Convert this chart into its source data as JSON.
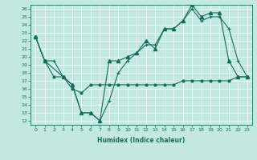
{
  "xlabel": "Humidex (Indice chaleur)",
  "bg_color": "#c3e8e0",
  "line_color": "#1a6b5a",
  "xlim": [
    -0.5,
    23.5
  ],
  "ylim": [
    11.5,
    26.5
  ],
  "yticks": [
    12,
    13,
    14,
    15,
    16,
    17,
    18,
    19,
    20,
    21,
    22,
    23,
    24,
    25,
    26
  ],
  "xticks": [
    0,
    1,
    2,
    3,
    4,
    5,
    6,
    7,
    8,
    9,
    10,
    11,
    12,
    13,
    14,
    15,
    16,
    17,
    18,
    19,
    20,
    21,
    22,
    23
  ],
  "series1_x": [
    0,
    1,
    2,
    3,
    4,
    5,
    6,
    7,
    8,
    9,
    10,
    11,
    12,
    13,
    14,
    15,
    16,
    17,
    18,
    19,
    20,
    21,
    22,
    23
  ],
  "series1_y": [
    22.5,
    19.5,
    19.5,
    17.5,
    16.5,
    13.0,
    13.0,
    12.0,
    14.5,
    18.0,
    19.5,
    20.5,
    21.5,
    21.5,
    23.5,
    23.5,
    24.5,
    26.0,
    24.5,
    25.0,
    25.0,
    23.5,
    19.5,
    17.5
  ],
  "series2_x": [
    0,
    1,
    3,
    4,
    5,
    6,
    7,
    8,
    9,
    10,
    11,
    12,
    13,
    14,
    15,
    16,
    17,
    18,
    19,
    20,
    21,
    22,
    23
  ],
  "series2_y": [
    22.5,
    19.5,
    17.5,
    16.5,
    13.0,
    13.0,
    12.0,
    19.5,
    19.5,
    20.0,
    20.5,
    22.0,
    21.0,
    23.5,
    23.5,
    24.5,
    26.5,
    25.0,
    25.5,
    25.5,
    19.5,
    17.5,
    17.5
  ],
  "series3_x": [
    0,
    1,
    2,
    3,
    4,
    5,
    6,
    7,
    8,
    9,
    10,
    11,
    12,
    13,
    14,
    15,
    16,
    17,
    18,
    19,
    20,
    21,
    22,
    23
  ],
  "series3_y": [
    22.5,
    19.5,
    17.5,
    17.5,
    16.0,
    15.5,
    16.5,
    16.5,
    16.5,
    16.5,
    16.5,
    16.5,
    16.5,
    16.5,
    16.5,
    16.5,
    17.0,
    17.0,
    17.0,
    17.0,
    17.0,
    17.0,
    17.5,
    17.5
  ]
}
